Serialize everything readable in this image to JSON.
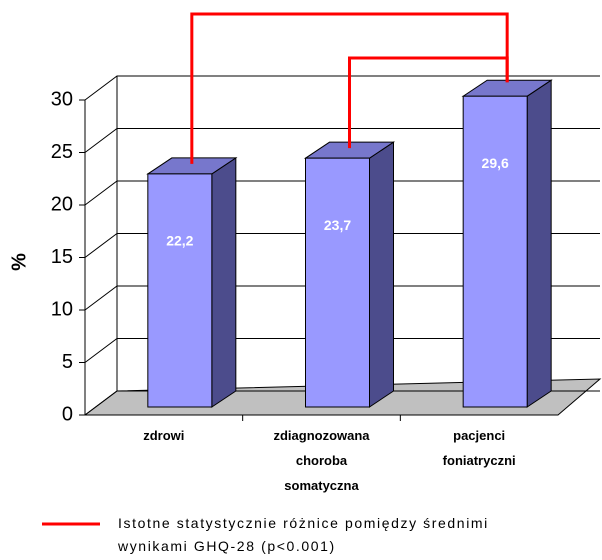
{
  "chart_data": {
    "type": "bar3d",
    "categories": [
      "zdrowi",
      "zdiagnozowana choroba somatyczna",
      "pacjenci foniatryczni"
    ],
    "values": [
      22.2,
      23.7,
      29.6
    ],
    "value_labels": [
      "22,2",
      "23,7",
      "29,6"
    ],
    "color": "#9999ff",
    "ylabel": "%",
    "ylim": [
      0,
      30
    ],
    "yticks": [
      0,
      5,
      10,
      15,
      20,
      25,
      30
    ],
    "grid": true,
    "comparisons": [
      [
        0,
        2
      ],
      [
        1,
        2
      ]
    ],
    "comparison_color": "#ff0000",
    "legend": "Istotne statystycznie różnice pomiędzy średnimi wynikami GHQ-28 (p<0.001)"
  }
}
